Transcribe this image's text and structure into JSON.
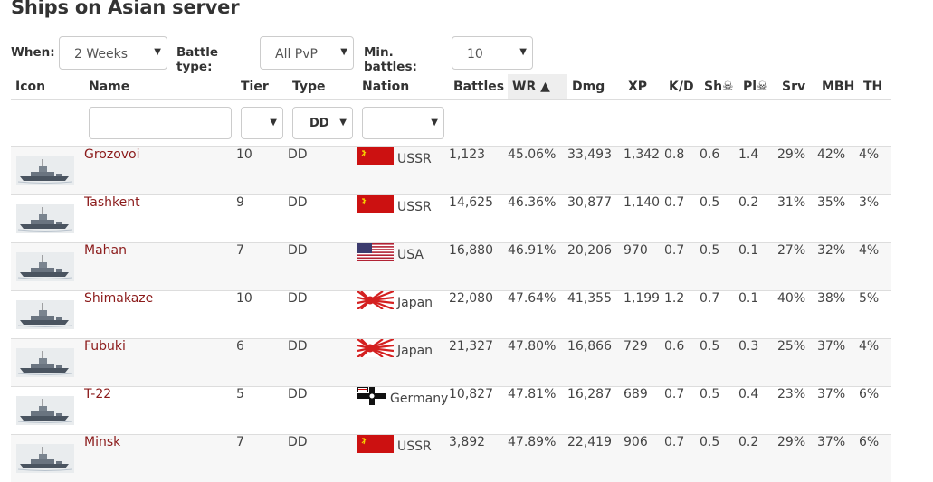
{
  "page": {
    "title": "Ships on Asian server"
  },
  "filters": {
    "when_label": "When:",
    "when_value": "2 Weeks",
    "battle_type_label": "Battle type:",
    "battle_type_value": "All PvP",
    "min_battles_label": "Min. battles:",
    "min_battles_value": "10"
  },
  "table": {
    "headers": {
      "icon": "Icon",
      "name": "Name",
      "tier": "Tier",
      "type": "Type",
      "nation": "Nation",
      "battles": "Battles",
      "wr": "WR ▲",
      "dmg": "Dmg",
      "xp": "XP",
      "kd": "K/D",
      "sh": "Sh☠",
      "pl": "Pl☠",
      "srv": "Srv",
      "mbh": "MBH",
      "th": "TH"
    },
    "type_filter_value": "DD",
    "rows": [
      {
        "name": "Grozovoi",
        "tier": "10",
        "type": "DD",
        "nation": "USSR",
        "flag": "ussr",
        "battles": "1,123",
        "wr": "45.06%",
        "dmg": "33,493",
        "xp": "1,342",
        "kd": "0.8",
        "sh": "0.6",
        "pl": "1.4",
        "srv": "29%",
        "mbh": "42%",
        "th": "4%"
      },
      {
        "name": "Tashkent",
        "tier": "9",
        "type": "DD",
        "nation": "USSR",
        "flag": "ussr",
        "battles": "14,625",
        "wr": "46.36%",
        "dmg": "30,877",
        "xp": "1,140",
        "kd": "0.7",
        "sh": "0.5",
        "pl": "0.2",
        "srv": "31%",
        "mbh": "35%",
        "th": "3%"
      },
      {
        "name": "Mahan",
        "tier": "7",
        "type": "DD",
        "nation": "USA",
        "flag": "usa",
        "battles": "16,880",
        "wr": "46.91%",
        "dmg": "20,206",
        "xp": "970",
        "kd": "0.7",
        "sh": "0.5",
        "pl": "0.1",
        "srv": "27%",
        "mbh": "32%",
        "th": "4%"
      },
      {
        "name": "Shimakaze",
        "tier": "10",
        "type": "DD",
        "nation": "Japan",
        "flag": "japan",
        "battles": "22,080",
        "wr": "47.64%",
        "dmg": "41,355",
        "xp": "1,199",
        "kd": "1.2",
        "sh": "0.7",
        "pl": "0.1",
        "srv": "40%",
        "mbh": "38%",
        "th": "5%"
      },
      {
        "name": "Fubuki",
        "tier": "6",
        "type": "DD",
        "nation": "Japan",
        "flag": "japan",
        "battles": "21,327",
        "wr": "47.80%",
        "dmg": "16,866",
        "xp": "729",
        "kd": "0.6",
        "sh": "0.5",
        "pl": "0.3",
        "srv": "25%",
        "mbh": "37%",
        "th": "4%"
      },
      {
        "name": "T-22",
        "tier": "5",
        "type": "DD",
        "nation": "Germany",
        "flag": "germany",
        "battles": "10,827",
        "wr": "47.81%",
        "dmg": "16,287",
        "xp": "689",
        "kd": "0.7",
        "sh": "0.5",
        "pl": "0.4",
        "srv": "23%",
        "mbh": "37%",
        "th": "6%"
      },
      {
        "name": "Minsk",
        "tier": "7",
        "type": "DD",
        "nation": "USSR",
        "flag": "ussr",
        "battles": "3,892",
        "wr": "47.89%",
        "dmg": "22,419",
        "xp": "906",
        "kd": "0.7",
        "sh": "0.5",
        "pl": "0.2",
        "srv": "29%",
        "mbh": "37%",
        "th": "6%"
      }
    ]
  },
  "colors": {
    "link": "#8b1a1a",
    "ussr_red": "#cc1111",
    "japan_red": "#d42020",
    "usa_blue": "#3c3b6e"
  }
}
